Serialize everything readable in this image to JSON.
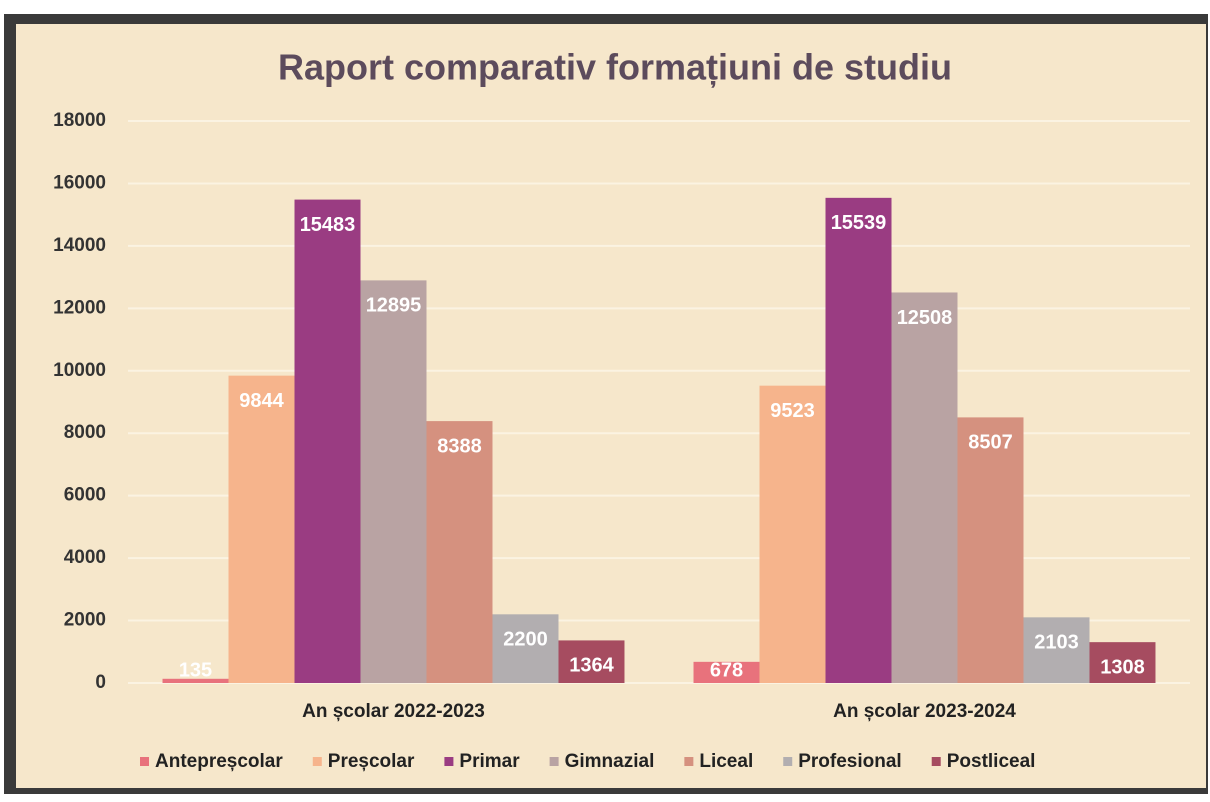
{
  "chart_data": {
    "type": "bar",
    "title": "Raport comparativ formațiuni de studiu",
    "categories": [
      "An școlar 2022-2023",
      "An școlar 2023-2024"
    ],
    "series": [
      {
        "name": "Antepreșcolar",
        "color": "#e8727c",
        "values": [
          135,
          678
        ]
      },
      {
        "name": "Preșcolar",
        "color": "#f6b48c",
        "values": [
          9844,
          9523
        ]
      },
      {
        "name": "Primar",
        "color": "#9a3c82",
        "values": [
          15483,
          15539
        ]
      },
      {
        "name": "Gimnazial",
        "color": "#b9a3a3",
        "values": [
          12895,
          12508
        ]
      },
      {
        "name": "Liceal",
        "color": "#d5917f",
        "values": [
          8388,
          8507
        ]
      },
      {
        "name": "Profesional",
        "color": "#b2aeb0",
        "values": [
          2200,
          2103
        ]
      },
      {
        "name": "Postliceal",
        "color": "#a64c60",
        "values": [
          1364,
          1308
        ]
      }
    ],
    "ylim": [
      0,
      18000
    ],
    "yticks": [
      0,
      2000,
      4000,
      6000,
      8000,
      10000,
      12000,
      14000,
      16000,
      18000
    ],
    "grid": true,
    "legend": "bottom"
  }
}
